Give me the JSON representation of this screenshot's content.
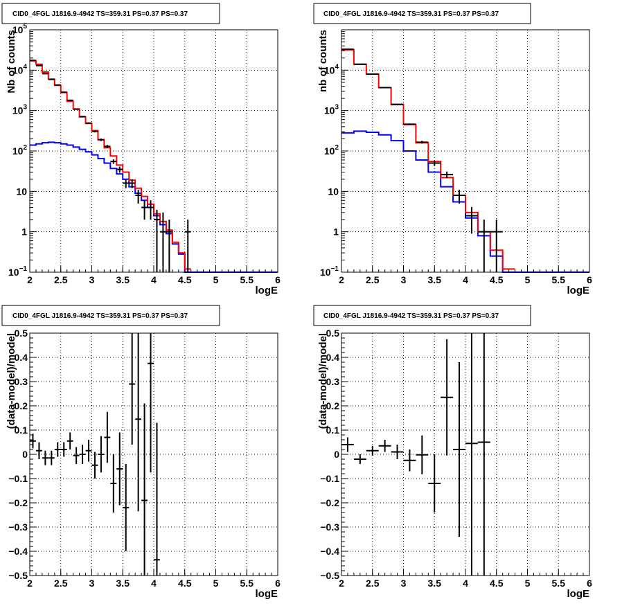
{
  "colors": {
    "data": "#000000",
    "total_model": "#ff0000",
    "source_model": "#0000ff",
    "grid": "#000000",
    "background": "#ffffff"
  },
  "chart_data": [
    {
      "type": "histogram",
      "title": "CID0_4FGL J1816.9-4942 TS=359.31 PS=0.37 PS=0.37",
      "xlabel": "logE",
      "ylabel": "Nb of counts",
      "xscale": "linear",
      "yscale": "log",
      "xlim": [
        2,
        6
      ],
      "ylim": [
        0.1,
        100000
      ],
      "x_ticks": [
        "2",
        "2.5",
        "3",
        "3.5",
        "4",
        "4.5",
        "5",
        "5.5",
        "6"
      ],
      "y_ticks": [
        {
          "value": 0.1,
          "base": "10",
          "exp": "−1"
        },
        {
          "value": 1,
          "label": "1"
        },
        {
          "value": 10,
          "label": "10"
        },
        {
          "value": 100,
          "base": "10",
          "exp": "2"
        },
        {
          "value": 1000,
          "base": "10",
          "exp": "3"
        },
        {
          "value": 10000,
          "base": "10",
          "exp": "4"
        },
        {
          "value": 100000,
          "base": "10",
          "exp": "5"
        }
      ],
      "grid": true,
      "bin_edges": [
        2.0,
        2.1,
        2.2,
        2.3,
        2.4,
        2.5,
        2.6,
        2.7,
        2.8,
        2.9,
        3.0,
        3.1,
        3.2,
        3.3,
        3.4,
        3.5,
        3.6,
        3.7,
        3.8,
        3.9,
        4.0,
        4.1,
        4.2,
        4.3,
        4.4,
        4.5,
        4.6
      ],
      "series": [
        {
          "role": "total_model",
          "color": "#ff0000",
          "values": [
            17000,
            14000,
            9000,
            6000,
            4200,
            2800,
            1700,
            1100,
            700,
            480,
            320,
            190,
            120,
            75,
            45,
            30,
            19,
            12,
            7.5,
            4.8,
            2.8,
            1.8,
            1.1,
            0.55,
            0.3,
            0.12
          ]
        },
        {
          "role": "source_model",
          "color": "#0000ff",
          "values": [
            140,
            150,
            160,
            165,
            160,
            150,
            140,
            125,
            110,
            95,
            80,
            65,
            50,
            37,
            27,
            20,
            13,
            9,
            6,
            4,
            2.5,
            1.5,
            0.9,
            0.5,
            0.28,
            0.1
          ]
        }
      ],
      "points": [
        {
          "x": 2.05,
          "y": 17500,
          "err_hi": 132,
          "err_lo": 132
        },
        {
          "x": 2.15,
          "y": 13000,
          "err_hi": 114,
          "err_lo": 114
        },
        {
          "x": 2.25,
          "y": 8200,
          "err_hi": 90,
          "err_lo": 90
        },
        {
          "x": 2.35,
          "y": 5900,
          "err_hi": 77,
          "err_lo": 77
        },
        {
          "x": 2.45,
          "y": 4300,
          "err_hi": 66,
          "err_lo": 66
        },
        {
          "x": 2.55,
          "y": 2850,
          "err_hi": 53,
          "err_lo": 53
        },
        {
          "x": 2.65,
          "y": 1800,
          "err_hi": 42,
          "err_lo": 42
        },
        {
          "x": 2.75,
          "y": 1080,
          "err_hi": 33,
          "err_lo": 33
        },
        {
          "x": 2.85,
          "y": 710,
          "err_hi": 27,
          "err_lo": 27
        },
        {
          "x": 2.95,
          "y": 490,
          "err_hi": 22,
          "err_lo": 22
        },
        {
          "x": 3.05,
          "y": 305,
          "err_hi": 17,
          "err_lo": 17
        },
        {
          "x": 3.15,
          "y": 190,
          "err_hi": 14,
          "err_lo": 14
        },
        {
          "x": 3.25,
          "y": 130,
          "err_hi": 11,
          "err_lo": 11
        },
        {
          "x": 3.35,
          "y": 55,
          "err_hi": 7,
          "err_lo": 7
        },
        {
          "x": 3.45,
          "y": 35,
          "err_hi": 6,
          "err_lo": 6
        },
        {
          "x": 3.55,
          "y": 16,
          "err_hi": 4,
          "err_lo": 4
        },
        {
          "x": 3.65,
          "y": 16,
          "err_hi": 4,
          "err_lo": 4
        },
        {
          "x": 3.75,
          "y": 8,
          "err_hi": 3,
          "err_lo": 3
        },
        {
          "x": 3.85,
          "y": 4,
          "err_hi": 2,
          "err_lo": 2
        },
        {
          "x": 3.95,
          "y": 4,
          "err_hi": 2,
          "err_lo": 2
        },
        {
          "x": 4.05,
          "y": 2,
          "err_hi": 1.5,
          "err_lo": 1.9
        },
        {
          "x": 4.15,
          "y": 1,
          "err_hi": 2,
          "err_lo": 0.99
        },
        {
          "x": 4.25,
          "y": 1,
          "err_hi": 1,
          "err_lo": 0.99
        },
        {
          "x": 4.55,
          "y": 1,
          "err_hi": 1,
          "err_lo": 0.99
        }
      ]
    },
    {
      "type": "histogram",
      "title": "CID0_4FGL J1816.9-4942 TS=359.31 PS=0.37 PS=0.37",
      "xlabel": "logE",
      "ylabel": "nb of counts",
      "xscale": "linear",
      "yscale": "log",
      "xlim": [
        2,
        6
      ],
      "ylim": [
        0.1,
        100000
      ],
      "x_ticks": [
        "2",
        "2.5",
        "3",
        "3.5",
        "4",
        "4.5",
        "5",
        "5.5",
        "6"
      ],
      "y_ticks": [
        {
          "value": 0.1,
          "base": "10",
          "exp": "−1"
        },
        {
          "value": 1,
          "label": "1"
        },
        {
          "value": 10,
          "label": "10"
        },
        {
          "value": 100,
          "base": "10",
          "exp": "2"
        },
        {
          "value": 1000,
          "base": "10",
          "exp": "3"
        },
        {
          "value": 10000,
          "base": "10",
          "exp": "4"
        }
      ],
      "grid": true,
      "bin_edges": [
        2.0,
        2.2,
        2.4,
        2.6,
        2.8,
        3.0,
        3.2,
        3.4,
        3.6,
        3.8,
        4.0,
        4.2,
        4.4,
        4.6,
        4.8
      ],
      "series": [
        {
          "role": "total_model",
          "color": "#ff0000",
          "values": [
            32000,
            14000,
            8000,
            3700,
            1400,
            450,
            160,
            55,
            22,
            8,
            3,
            1,
            0.35,
            0.12
          ]
        },
        {
          "role": "source_model",
          "color": "#0000ff",
          "values": [
            280,
            310,
            290,
            250,
            180,
            100,
            60,
            30,
            13,
            5.5,
            2.2,
            0.8,
            0.25,
            0.1
          ]
        }
      ],
      "points": [
        {
          "x": 2.1,
          "y": 33000,
          "err_hi": 182,
          "err_lo": 182
        },
        {
          "x": 2.3,
          "y": 14000,
          "err_hi": 118,
          "err_lo": 118
        },
        {
          "x": 2.5,
          "y": 8000,
          "err_hi": 90,
          "err_lo": 90
        },
        {
          "x": 2.7,
          "y": 3700,
          "err_hi": 61,
          "err_lo": 61
        },
        {
          "x": 2.9,
          "y": 1430,
          "err_hi": 38,
          "err_lo": 38
        },
        {
          "x": 3.1,
          "y": 460,
          "err_hi": 21,
          "err_lo": 21
        },
        {
          "x": 3.3,
          "y": 165,
          "err_hi": 13,
          "err_lo": 13
        },
        {
          "x": 3.5,
          "y": 50,
          "err_hi": 7,
          "err_lo": 7
        },
        {
          "x": 3.7,
          "y": 26,
          "err_hi": 5,
          "err_lo": 5
        },
        {
          "x": 3.9,
          "y": 8,
          "err_hi": 3,
          "err_lo": 3
        },
        {
          "x": 4.1,
          "y": 2.5,
          "err_hi": 1.6,
          "err_lo": 1.6
        },
        {
          "x": 4.3,
          "y": 1,
          "err_hi": 1,
          "err_lo": 0.99
        },
        {
          "x": 4.5,
          "y": 1,
          "err_hi": 1,
          "err_lo": 0.99
        }
      ]
    },
    {
      "type": "scatter",
      "title": "CID0_4FGL J1816.9-4942 TS=359.31 PS=0.37 PS=0.37",
      "xlabel": "logE",
      "ylabel": "(data-model)/model",
      "xscale": "linear",
      "yscale": "linear",
      "xlim": [
        2,
        6
      ],
      "ylim": [
        -0.5,
        0.5
      ],
      "x_ticks": [
        "2",
        "2.5",
        "3",
        "3.5",
        "4",
        "4.5",
        "5",
        "5.5",
        "6"
      ],
      "y_ticks": [
        "−0.5",
        "−0.4",
        "−0.3",
        "−0.2",
        "−0.1",
        "0",
        "0.1",
        "0.2",
        "0.3",
        "0.4",
        "0.5"
      ],
      "grid": true,
      "x_half_width": 0.05,
      "points": [
        {
          "x": 2.05,
          "y": 0.055,
          "err": 0.03
        },
        {
          "x": 2.15,
          "y": 0.015,
          "err": 0.035
        },
        {
          "x": 2.25,
          "y": -0.015,
          "err": 0.03
        },
        {
          "x": 2.35,
          "y": -0.015,
          "err": 0.03
        },
        {
          "x": 2.45,
          "y": 0.02,
          "err": 0.03
        },
        {
          "x": 2.55,
          "y": 0.02,
          "err": 0.03
        },
        {
          "x": 2.65,
          "y": 0.055,
          "err": 0.035
        },
        {
          "x": 2.75,
          "y": -0.005,
          "err": 0.035
        },
        {
          "x": 2.85,
          "y": 0.0,
          "err": 0.04
        },
        {
          "x": 2.95,
          "y": 0.015,
          "err": 0.045
        },
        {
          "x": 3.05,
          "y": -0.045,
          "err": 0.055
        },
        {
          "x": 3.15,
          "y": 0.0,
          "err": 0.075
        },
        {
          "x": 3.25,
          "y": 0.07,
          "err": 0.105
        },
        {
          "x": 3.35,
          "y": -0.12,
          "err": 0.12
        },
        {
          "x": 3.45,
          "y": -0.06,
          "err": 0.15
        },
        {
          "x": 3.55,
          "y": -0.22,
          "err": 0.18
        },
        {
          "x": 3.65,
          "y": 0.29,
          "err": 0.25
        },
        {
          "x": 3.75,
          "y": 0.145,
          "err": 0.38
        },
        {
          "x": 3.85,
          "y": -0.19,
          "err": 0.4
        },
        {
          "x": 3.95,
          "y": 0.375,
          "err": 0.45
        },
        {
          "x": 4.05,
          "y": -0.435,
          "err": 0.565
        }
      ]
    },
    {
      "type": "scatter",
      "title": "CID0_4FGL J1816.9-4942 TS=359.31 PS=0.37 PS=0.37",
      "xlabel": "logE",
      "ylabel": "(data-model)/model",
      "xscale": "linear",
      "yscale": "linear",
      "xlim": [
        2,
        6
      ],
      "ylim": [
        -0.5,
        0.5
      ],
      "x_ticks": [
        "2",
        "2.5",
        "3",
        "3.5",
        "4",
        "4.5",
        "5",
        "5.5",
        "6"
      ],
      "y_ticks": [
        "−0.5",
        "−0.4",
        "−0.3",
        "−0.2",
        "−0.1",
        "0",
        "0.1",
        "0.2",
        "0.3",
        "0.4",
        "0.5"
      ],
      "grid": true,
      "x_half_width": 0.1,
      "points": [
        {
          "x": 2.1,
          "y": 0.04,
          "err": 0.03
        },
        {
          "x": 2.3,
          "y": -0.02,
          "err": 0.02
        },
        {
          "x": 2.5,
          "y": 0.015,
          "err": 0.02
        },
        {
          "x": 2.7,
          "y": 0.035,
          "err": 0.025
        },
        {
          "x": 2.9,
          "y": 0.01,
          "err": 0.03
        },
        {
          "x": 3.1,
          "y": -0.025,
          "err": 0.045
        },
        {
          "x": 3.3,
          "y": -0.002,
          "err": 0.08
        },
        {
          "x": 3.5,
          "y": -0.12,
          "err": 0.12
        },
        {
          "x": 3.7,
          "y": 0.235,
          "err": 0.24
        },
        {
          "x": 3.9,
          "y": 0.02,
          "err": 0.36
        },
        {
          "x": 4.1,
          "y": 0.045,
          "err": 0.6
        },
        {
          "x": 4.3,
          "y": 0.05,
          "err": 0.6
        }
      ]
    }
  ]
}
